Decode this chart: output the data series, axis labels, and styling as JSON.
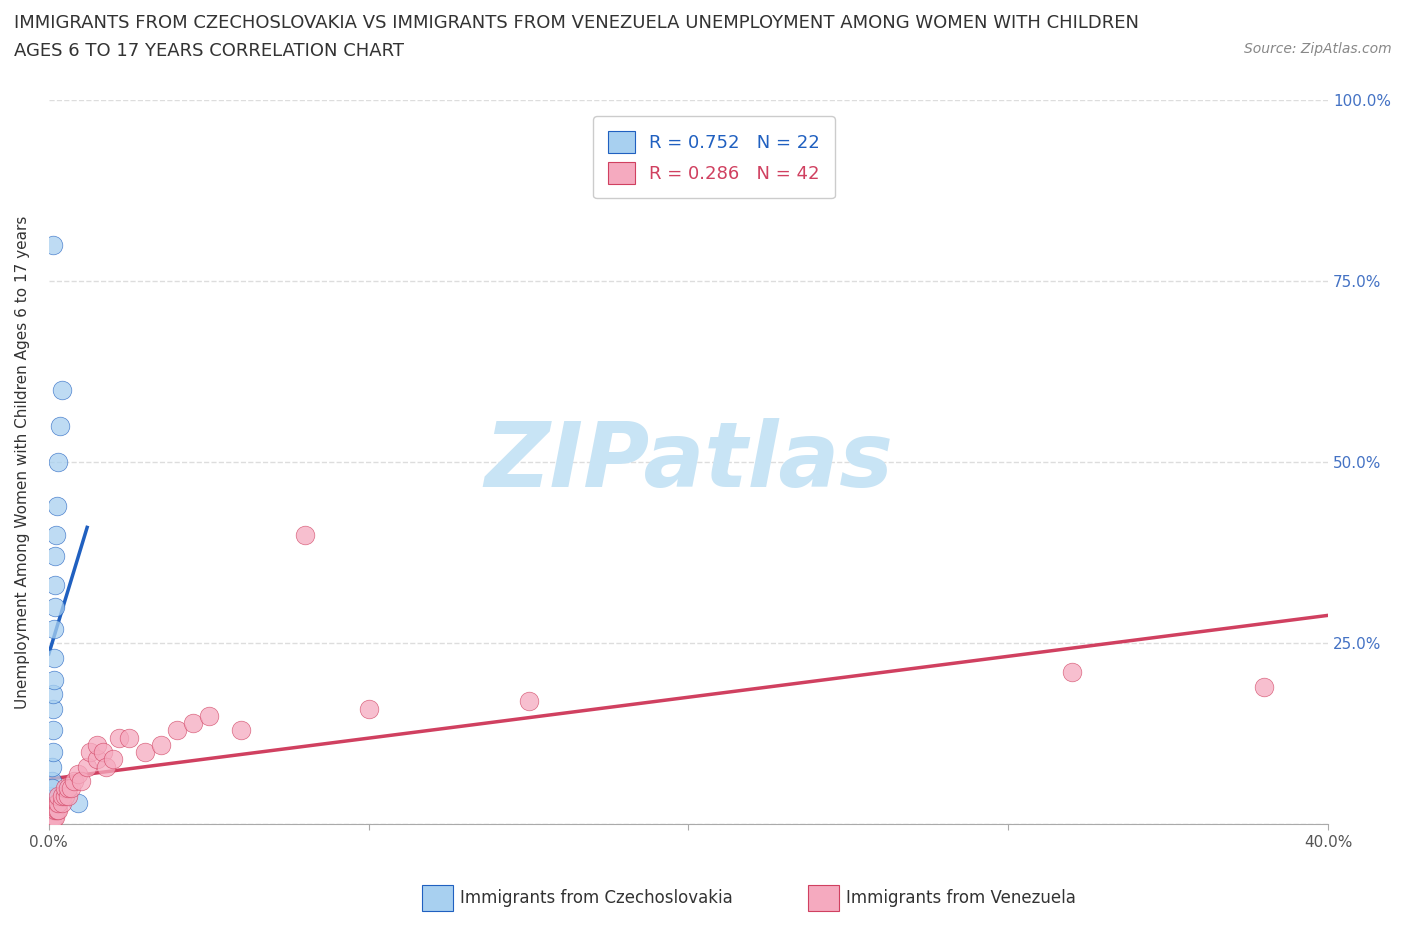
{
  "title_line1": "IMMIGRANTS FROM CZECHOSLOVAKIA VS IMMIGRANTS FROM VENEZUELA UNEMPLOYMENT AMONG WOMEN WITH CHILDREN",
  "title_line2": "AGES 6 TO 17 YEARS CORRELATION CHART",
  "source_text": "Source: ZipAtlas.com",
  "ylabel": "Unemployment Among Women with Children Ages 6 to 17 years",
  "r_czechoslovakia": 0.752,
  "n_czechoslovakia": 22,
  "r_venezuela": 0.286,
  "n_venezuela": 42,
  "color_czechoslovakia": "#A8D0F0",
  "color_venezuela": "#F5AABF",
  "line_color_czechoslovakia": "#2060C0",
  "line_color_venezuela": "#D04060",
  "xmin": 0.0,
  "xmax": 0.4,
  "ymin": 0.0,
  "ymax": 1.0,
  "xtick_values": [
    0.0,
    0.1,
    0.2,
    0.3,
    0.4
  ],
  "ytick_values": [
    0.0,
    0.25,
    0.5,
    0.75,
    1.0
  ],
  "right_ytick_labels": [
    "",
    "25.0%",
    "50.0%",
    "75.0%",
    "100.0%"
  ],
  "background_color": "#FFFFFF",
  "grid_color": "#DDDDDD",
  "watermark_text": "ZIPatlas",
  "watermark_color": "#C8E4F5",
  "title_fontsize": 13,
  "legend_fontsize": 13,
  "czecho_x": [
    0.0008,
    0.0008,
    0.0009,
    0.001,
    0.001,
    0.0012,
    0.0012,
    0.0013,
    0.0014,
    0.0015,
    0.0016,
    0.0017,
    0.0018,
    0.0019,
    0.002,
    0.0022,
    0.0025,
    0.003,
    0.0035,
    0.004,
    0.0012,
    0.009
  ],
  "czecho_y": [
    0.02,
    0.04,
    0.06,
    0.05,
    0.08,
    0.1,
    0.13,
    0.16,
    0.18,
    0.2,
    0.23,
    0.27,
    0.3,
    0.33,
    0.37,
    0.4,
    0.44,
    0.5,
    0.55,
    0.6,
    0.8,
    0.03
  ],
  "venez_x": [
    0.001,
    0.001,
    0.001,
    0.0015,
    0.0015,
    0.002,
    0.002,
    0.0025,
    0.0025,
    0.003,
    0.003,
    0.003,
    0.004,
    0.004,
    0.005,
    0.005,
    0.006,
    0.006,
    0.007,
    0.008,
    0.009,
    0.01,
    0.012,
    0.013,
    0.015,
    0.015,
    0.017,
    0.018,
    0.02,
    0.022,
    0.025,
    0.03,
    0.035,
    0.04,
    0.045,
    0.05,
    0.06,
    0.08,
    0.1,
    0.15,
    0.32,
    0.38
  ],
  "venez_y": [
    0.0,
    0.01,
    0.02,
    0.01,
    0.02,
    0.01,
    0.02,
    0.02,
    0.03,
    0.02,
    0.03,
    0.04,
    0.03,
    0.04,
    0.04,
    0.05,
    0.04,
    0.05,
    0.05,
    0.06,
    0.07,
    0.06,
    0.08,
    0.1,
    0.09,
    0.11,
    0.1,
    0.08,
    0.09,
    0.12,
    0.12,
    0.1,
    0.11,
    0.13,
    0.14,
    0.15,
    0.13,
    0.4,
    0.16,
    0.17,
    0.21,
    0.19
  ]
}
